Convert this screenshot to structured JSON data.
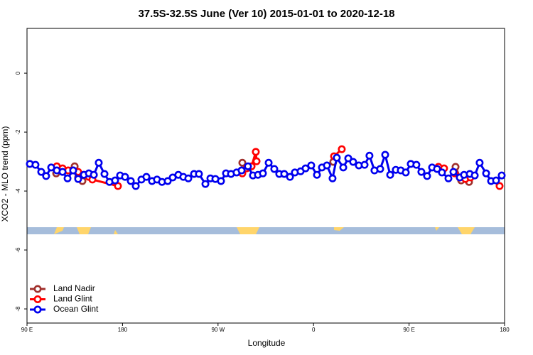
{
  "chart_data": {
    "type": "line",
    "title": "37.5S-32.5S June (Ver 10)   2015-01-01 to 2020-12-18",
    "x_label": "Longitude",
    "y_label": "XCO2 - MLO trend (ppm)",
    "xlim": [
      90,
      540
    ],
    "xticks": [
      {
        "value": 90,
        "label": "90 E"
      },
      180,
      {
        "value": 270,
        "label": "90 W"
      },
      {
        "value": 360,
        "label": "0"
      },
      {
        "value": 450,
        "label": "90 E"
      },
      {
        "value": 540,
        "label": "180"
      }
    ],
    "ylim": [
      -8.48,
      1.52
    ],
    "yticks": [
      0,
      -2,
      -4,
      -6,
      -8
    ],
    "grid": false,
    "legend": "bottomleft",
    "series": [
      {
        "name": "Land Nadir",
        "color": "#a0302c",
        "x": [
          117.5,
          134.9,
          138.2,
          142.2,
          null,
          292.9,
          null,
          378.6,
          null,
          493.8,
          499.1,
          506.5
        ],
        "values": [
          -3.4,
          -3.16,
          -3.54,
          -3.66,
          null,
          -3.04,
          null,
          -3.01,
          null,
          -3.18,
          -3.64,
          -3.69
        ]
      },
      {
        "name": "Land Glint",
        "color": "#ff0000",
        "x": [
          118.1,
          123.5,
          128.8,
          133.5,
          138.2,
          143.6,
          148.3,
          151.6,
          175.7,
          null,
          292.9,
          296.9,
          301.6,
          305.6,
          306.3,
          null,
          379.3,
          386.6,
          null,
          477.7,
          483.0,
          null,
          493.1,
          497.8,
          503.1,
          507.8,
          null,
          535.3
        ],
        "values": [
          -3.16,
          -3.23,
          -3.3,
          -3.3,
          -3.35,
          -3.45,
          -3.52,
          -3.61,
          -3.83,
          null,
          -3.4,
          -3.23,
          -3.16,
          -2.67,
          -2.99,
          null,
          -2.82,
          -2.58,
          null,
          -3.18,
          -3.23,
          null,
          -3.4,
          -3.54,
          -3.59,
          -3.54,
          null,
          -3.83
        ]
      },
      {
        "name": "Ocean Glint",
        "color": "#0000ee",
        "x": [
          92.7,
          98.0,
          103.4,
          108.0,
          112.8,
          118.1,
          123.5,
          128.2,
          133.5,
          138.2,
          143.6,
          148.3,
          153.0,
          157.6,
          163.0,
          167.7,
          173.0,
          177.7,
          182.4,
          187.8,
          192.5,
          197.8,
          202.5,
          207.8,
          212.5,
          217.2,
          222.6,
          227.3,
          232.6,
          237.3,
          242.0,
          247.4,
          252.0,
          258.1,
          262.8,
          267.5,
          272.8,
          277.5,
          282.2,
          287.5,
          292.2,
          298.2,
          302.9,
          307.6,
          312.3,
          317.7,
          323.0,
          327.7,
          332.4,
          337.8,
          342.4,
          347.8,
          352.5,
          357.8,
          363.2,
          367.9,
          372.6,
          377.9,
          381.9,
          388.0,
          392.7,
          397.3,
          402.7,
          408.1,
          412.7,
          417.4,
          422.8,
          427.5,
          432.2,
          437.5,
          442.2,
          446.9,
          451.6,
          456.9,
          461.6,
          467.0,
          471.7,
          476.4,
          481.0,
          487.1,
          491.8,
          497.8,
          501.8,
          507.2,
          511.9,
          516.5,
          522.6,
          527.3,
          532.0,
          537.3
        ],
        "values": [
          -3.08,
          -3.11,
          -3.35,
          -3.49,
          -3.2,
          -3.3,
          -3.35,
          -3.57,
          -3.3,
          -3.59,
          -3.45,
          -3.4,
          -3.45,
          -3.04,
          -3.42,
          -3.69,
          -3.64,
          -3.47,
          -3.52,
          -3.66,
          -3.83,
          -3.61,
          -3.52,
          -3.66,
          -3.61,
          -3.69,
          -3.66,
          -3.54,
          -3.45,
          -3.52,
          -3.57,
          -3.42,
          -3.42,
          -3.76,
          -3.57,
          -3.59,
          -3.66,
          -3.4,
          -3.42,
          -3.37,
          -3.3,
          -3.16,
          -3.47,
          -3.45,
          -3.4,
          -3.04,
          -3.25,
          -3.42,
          -3.42,
          -3.52,
          -3.37,
          -3.33,
          -3.23,
          -3.13,
          -3.45,
          -3.2,
          -3.13,
          -3.57,
          -2.87,
          -3.2,
          -2.89,
          -3.01,
          -3.13,
          -3.11,
          -2.8,
          -3.3,
          -3.25,
          -2.77,
          -3.45,
          -3.28,
          -3.3,
          -3.37,
          -3.08,
          -3.11,
          -3.35,
          -3.49,
          -3.2,
          -3.25,
          -3.37,
          -3.57,
          -3.35,
          -3.54,
          -3.45,
          -3.42,
          -3.47,
          -3.04,
          -3.4,
          -3.66,
          -3.64,
          -3.47
        ]
      }
    ]
  }
}
